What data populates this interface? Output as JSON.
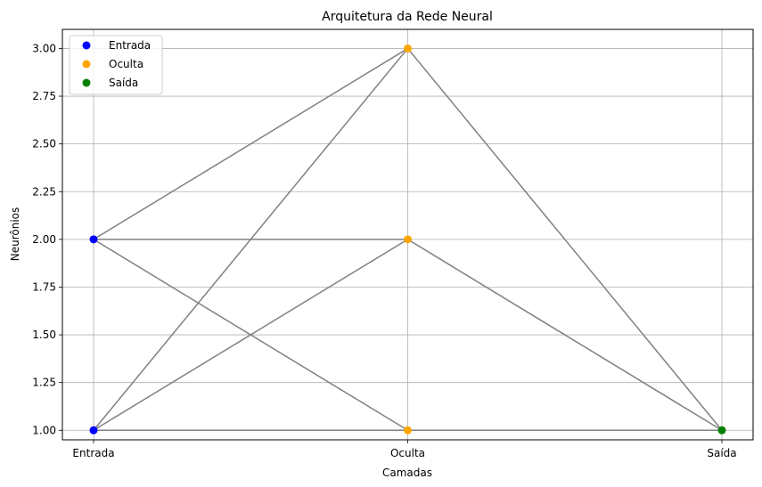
{
  "chart_data": {
    "type": "scatter",
    "title": "Arquitetura da Rede Neural",
    "xlabel": "Camadas",
    "ylabel": "Neurônios",
    "categories": [
      "Entrada",
      "Oculta",
      "Saída"
    ],
    "ylim": [
      0.95,
      3.1
    ],
    "yticks": [
      1.0,
      1.25,
      1.5,
      1.75,
      2.0,
      2.25,
      2.5,
      2.75,
      3.0
    ],
    "ytick_labels": [
      "1.00",
      "1.25",
      "1.50",
      "1.75",
      "2.00",
      "2.25",
      "2.50",
      "2.75",
      "3.00"
    ],
    "grid": true,
    "legend_position": "top-left",
    "series": [
      {
        "name": "Entrada",
        "color": "#0000ff",
        "points": [
          {
            "x": "Entrada",
            "y": 1
          },
          {
            "x": "Entrada",
            "y": 2
          }
        ]
      },
      {
        "name": "Oculta",
        "color": "#ffa500",
        "points": [
          {
            "x": "Oculta",
            "y": 1
          },
          {
            "x": "Oculta",
            "y": 2
          },
          {
            "x": "Oculta",
            "y": 3
          }
        ]
      },
      {
        "name": "Saída",
        "color": "#008000",
        "points": [
          {
            "x": "Saída",
            "y": 1
          }
        ]
      }
    ],
    "connections_color": "#808080",
    "connections": [
      {
        "from": [
          "Entrada",
          1
        ],
        "to": [
          "Oculta",
          1
        ]
      },
      {
        "from": [
          "Entrada",
          1
        ],
        "to": [
          "Oculta",
          2
        ]
      },
      {
        "from": [
          "Entrada",
          1
        ],
        "to": [
          "Oculta",
          3
        ]
      },
      {
        "from": [
          "Entrada",
          2
        ],
        "to": [
          "Oculta",
          1
        ]
      },
      {
        "from": [
          "Entrada",
          2
        ],
        "to": [
          "Oculta",
          2
        ]
      },
      {
        "from": [
          "Entrada",
          2
        ],
        "to": [
          "Oculta",
          3
        ]
      },
      {
        "from": [
          "Oculta",
          1
        ],
        "to": [
          "Saída",
          1
        ]
      },
      {
        "from": [
          "Oculta",
          2
        ],
        "to": [
          "Saída",
          1
        ]
      },
      {
        "from": [
          "Oculta",
          3
        ],
        "to": [
          "Saída",
          1
        ]
      }
    ]
  }
}
